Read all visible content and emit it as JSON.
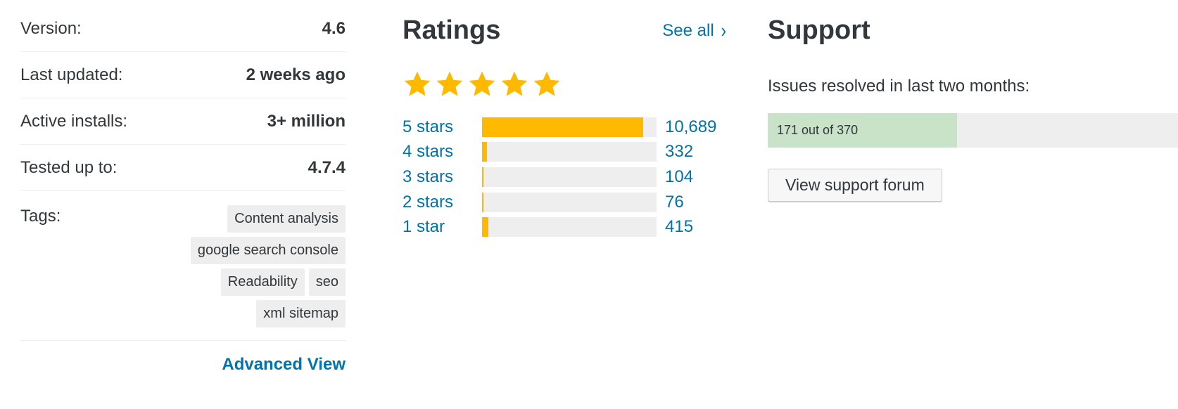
{
  "meta": {
    "rows": [
      {
        "label": "Version:",
        "value": "4.6"
      },
      {
        "label": "Last updated:",
        "value": "2 weeks ago"
      },
      {
        "label": "Active installs:",
        "value": "3+ million"
      },
      {
        "label": "Tested up to:",
        "value": "4.7.4"
      }
    ],
    "tags_label": "Tags:",
    "tags": [
      "Content analysis",
      "google search console",
      "Readability",
      "seo",
      "xml sitemap"
    ],
    "advanced_view": "Advanced View"
  },
  "ratings": {
    "title": "Ratings",
    "see_all": "See all",
    "stars_filled": 5,
    "stars_total": 5,
    "star_color": "#ffb900",
    "items": [
      {
        "label": "5 stars",
        "count": "10,689",
        "fraction": 0.924
      },
      {
        "label": "4 stars",
        "count": "332",
        "fraction": 0.029
      },
      {
        "label": "3 stars",
        "count": "104",
        "fraction": 0.009
      },
      {
        "label": "2 stars",
        "count": "76",
        "fraction": 0.007
      },
      {
        "label": "1 star",
        "count": "415",
        "fraction": 0.036
      }
    ]
  },
  "support": {
    "title": "Support",
    "issues_label": "Issues resolved in last two months:",
    "progress_text": "171 out of 370",
    "resolved": 171,
    "total": 370,
    "forum_button": "View support forum"
  }
}
